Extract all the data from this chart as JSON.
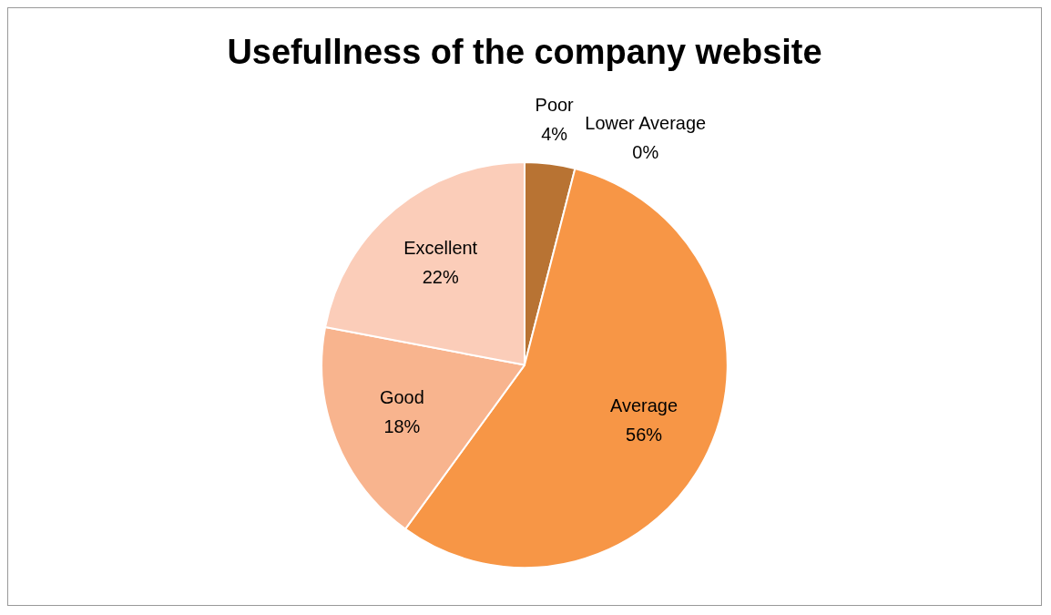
{
  "chart_data": {
    "type": "pie",
    "title": "Usefullness of the company website",
    "categories": [
      "Poor",
      "Lower Average",
      "Average",
      "Good",
      "Excellent"
    ],
    "values": [
      4,
      0,
      56,
      18,
      22
    ],
    "colors": [
      "#b87333",
      "#d9843b",
      "#f79646",
      "#f8b48e",
      "#fbcdb9"
    ],
    "value_labels": [
      "4%",
      "0%",
      "56%",
      "18%",
      "22%"
    ],
    "legend": false
  }
}
